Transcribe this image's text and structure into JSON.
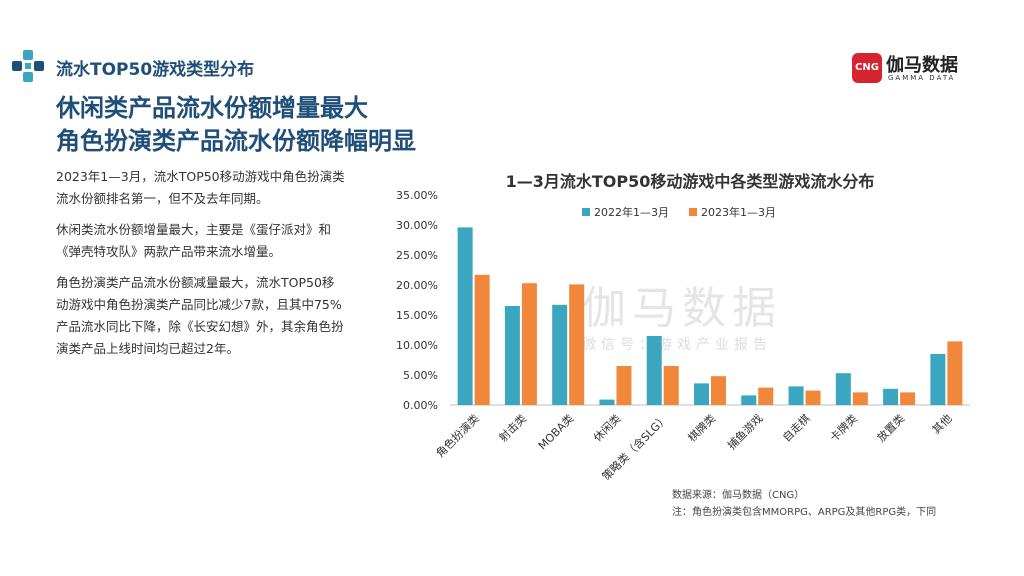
{
  "header": {
    "section_title": "流水TOP50游戏类型分布",
    "brand_name": "伽马数据",
    "brand_mark": "CNG",
    "brand_sub": "GAMMA DATA"
  },
  "headline": {
    "line1": "休闲类产品流水份额增量最大",
    "line2": "角色扮演类产品流水份额降幅明显"
  },
  "body": {
    "p1": "2023年1—3月，流水TOP50移动游戏中角色扮演类流水份额排名第一，但不及去年同期。",
    "p2": "休闲类流水份额增量最大，主要是《蛋仔派对》和《弹壳特攻队》两款产品带来流水增量。",
    "p3": "角色扮演类产品流水份额减量最大，流水TOP50移动游戏中角色扮演类产品同比减少7款，且其中75%产品流水同比下降，除《长安幻想》外，其余角色扮演类产品上线时间均已超过2年。"
  },
  "watermark": {
    "main": "伽马数据",
    "sub": "微信号：游戏产业报告"
  },
  "source": {
    "line1": "数据来源：伽马数据（CNG）",
    "line2": "注：角色扮演类包含MMORPG、ARPG及其他RPG类，下同"
  },
  "chart_data": {
    "type": "bar",
    "title": "1—3月流水TOP50移动游戏中各类型游戏流水分布",
    "categories": [
      "角色扮演类",
      "射击类",
      "MOBA类",
      "休闲类",
      "策略类（含SLG）",
      "棋牌类",
      "捕鱼游戏",
      "自走棋",
      "卡牌类",
      "放置类",
      "其他"
    ],
    "series": [
      {
        "name": "2022年1—3月",
        "color": "#3aa6c0",
        "values": [
          29.6,
          16.5,
          16.7,
          0.9,
          11.5,
          3.6,
          1.6,
          3.1,
          5.3,
          2.7,
          8.5
        ]
      },
      {
        "name": "2023年1—3月",
        "color": "#f0873a",
        "values": [
          21.7,
          20.3,
          20.1,
          6.5,
          6.5,
          4.8,
          2.9,
          2.4,
          2.1,
          2.1,
          10.6
        ]
      }
    ],
    "ylim": [
      0,
      35
    ],
    "yticks": [
      "0.00%",
      "5.00%",
      "10.00%",
      "15.00%",
      "20.00%",
      "25.00%",
      "30.00%",
      "35.00%"
    ],
    "grid": false,
    "legend_position": "top"
  }
}
